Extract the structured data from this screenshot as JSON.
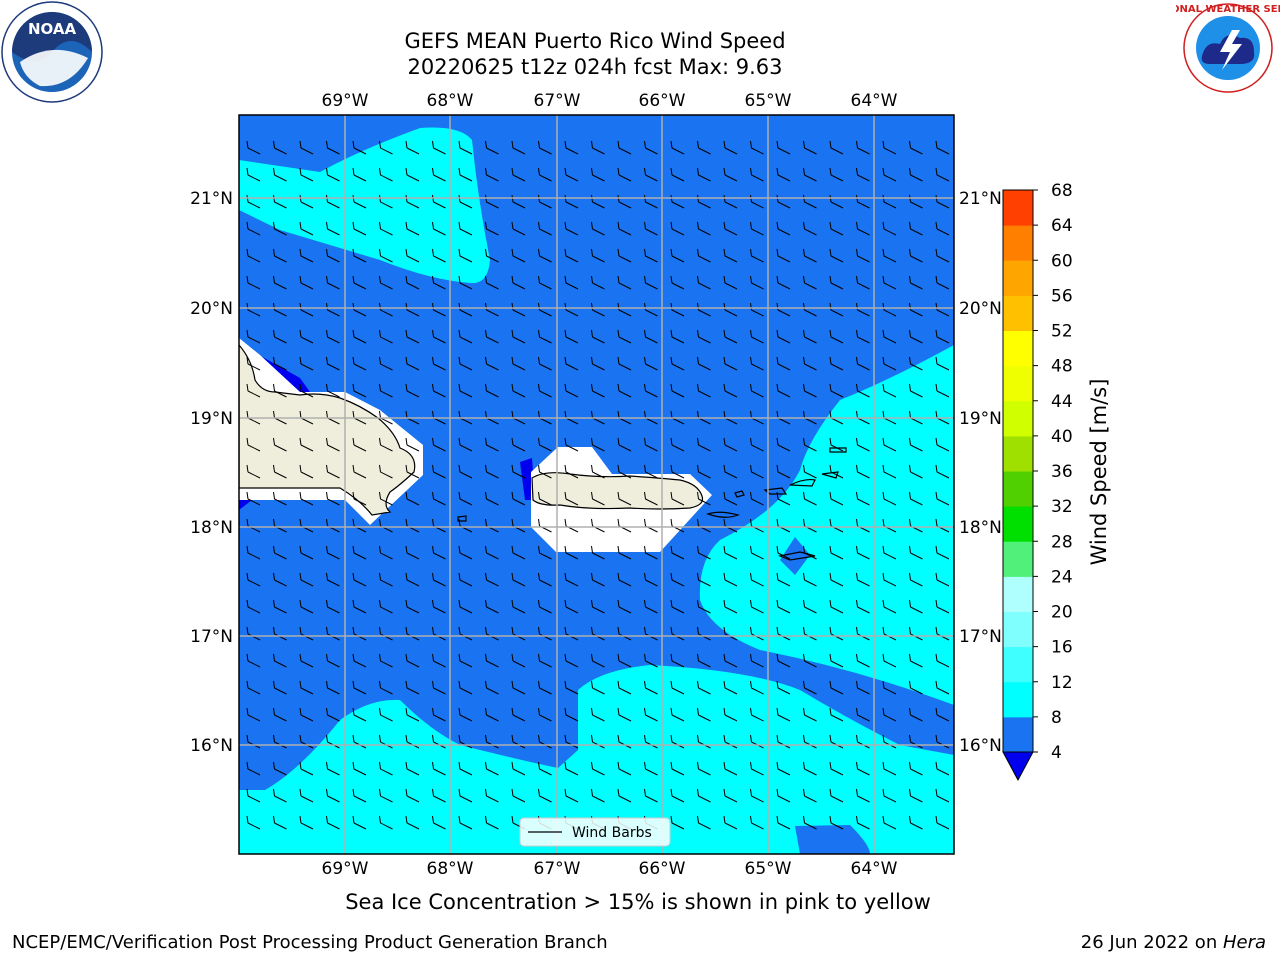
{
  "title": {
    "line1": "GEFS MEAN Puerto Rico Wind Speed",
    "line2": "20220625 t12z 024h fcst   Max: 9.63"
  },
  "note": "Sea Ice Concentration > 15% is shown in pink to yellow",
  "footer": {
    "left": "NCEP/EMC/Verification Post Processing Product Generation Branch",
    "date": "26 Jun 2022 on ",
    "machine": "Hera"
  },
  "logos": {
    "left": "NOAA",
    "right": "NATIONAL WEATHER SERVICE"
  },
  "map": {
    "lon_labels": [
      "69°W",
      "68°W",
      "67°W",
      "66°W",
      "65°W",
      "64°W"
    ],
    "lat_labels": [
      "21°N",
      "20°N",
      "19°N",
      "18°N",
      "17°N",
      "16°N"
    ],
    "legend_label": "Wind Barbs",
    "colors": {
      "band_4_8": "#1a73f0",
      "band_8_12": "#00ffff",
      "land": "#efeedd",
      "below_4": "#0000ee"
    }
  },
  "colorbar": {
    "label": "Wind Speed [m/s]",
    "ticks": [
      "4",
      "8",
      "12",
      "16",
      "20",
      "24",
      "28",
      "32",
      "36",
      "40",
      "44",
      "48",
      "52",
      "56",
      "60",
      "64",
      "68"
    ],
    "colors": [
      "#1a73f0",
      "#00ffff",
      "#40ffff",
      "#80ffff",
      "#b0ffff",
      "#50f07a",
      "#00e000",
      "#50d000",
      "#a0e000",
      "#d0ff00",
      "#f0ff00",
      "#ffff00",
      "#ffc000",
      "#ffa500",
      "#ff8000",
      "#ff4000",
      "#ff2000"
    ]
  }
}
